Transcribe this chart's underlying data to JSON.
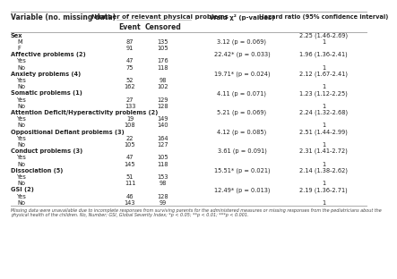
{
  "col_headers": [
    "Variable (no. missing data)",
    "Number of relevant physical problems",
    "Wald χ² (p-values)",
    "Hazard ratio (95% confidence interval)"
  ],
  "sub_headers": [
    "Event",
    "Censored"
  ],
  "rows": [
    {
      "var": "Sex",
      "event": "",
      "censored": "",
      "wald": "",
      "hr": "2.25 (1.46-2.69)",
      "bold": true
    },
    {
      "var": "M",
      "event": "87",
      "censored": "135",
      "wald": "3.12 (p = 0.069)",
      "hr": "1",
      "bold": false
    },
    {
      "var": "F",
      "event": "91",
      "censored": "105",
      "wald": "",
      "hr": "",
      "bold": false
    },
    {
      "var": "Affective problems (2)",
      "event": "",
      "censored": "",
      "wald": "22.42* (p = 0.033)",
      "hr": "1.96 (1.36-2.41)",
      "bold": true
    },
    {
      "var": "Yes",
      "event": "47",
      "censored": "176",
      "wald": "",
      "hr": "",
      "bold": false
    },
    {
      "var": "No",
      "event": "75",
      "censored": "118",
      "wald": "",
      "hr": "1",
      "bold": false
    },
    {
      "var": "Anxiety problems (4)",
      "event": "",
      "censored": "",
      "wald": "19.71* (p = 0.024)",
      "hr": "2.12 (1.67-2.41)",
      "bold": true
    },
    {
      "var": "Yes",
      "event": "52",
      "censored": "98",
      "wald": "",
      "hr": "",
      "bold": false
    },
    {
      "var": "No",
      "event": "162",
      "censored": "102",
      "wald": "",
      "hr": "1",
      "bold": false
    },
    {
      "var": "Somatic problems (1)",
      "event": "",
      "censored": "",
      "wald": "4.11 (p = 0.071)",
      "hr": "1.23 (1.12-2.25)",
      "bold": true
    },
    {
      "var": "Yes",
      "event": "27",
      "censored": "129",
      "wald": "",
      "hr": "",
      "bold": false
    },
    {
      "var": "No",
      "event": "133",
      "censored": "128",
      "wald": "",
      "hr": "1",
      "bold": false
    },
    {
      "var": "Attention Deficit/Hyperactivity problems (2)",
      "event": "",
      "censored": "",
      "wald": "5.21 (p = 0.069)",
      "hr": "2.24 (1.32-2.68)",
      "bold": true
    },
    {
      "var": "Yes",
      "event": "19",
      "censored": "149",
      "wald": "",
      "hr": "",
      "bold": false
    },
    {
      "var": "No",
      "event": "108",
      "censored": "140",
      "wald": "",
      "hr": "1",
      "bold": false
    },
    {
      "var": "Oppositional Defiant problems (3)",
      "event": "",
      "censored": "",
      "wald": "4.12 (p = 0.085)",
      "hr": "2.51 (1.44-2.99)",
      "bold": true
    },
    {
      "var": "Yes",
      "event": "22",
      "censored": "164",
      "wald": "",
      "hr": "",
      "bold": false
    },
    {
      "var": "No",
      "event": "105",
      "censored": "127",
      "wald": "",
      "hr": "1",
      "bold": false
    },
    {
      "var": "Conduct problems (3)",
      "event": "",
      "censored": "",
      "wald": "3.61 (p = 0.091)",
      "hr": "2.31 (1.41-2.72)",
      "bold": true
    },
    {
      "var": "Yes",
      "event": "47",
      "censored": "105",
      "wald": "",
      "hr": "",
      "bold": false
    },
    {
      "var": "No",
      "event": "145",
      "censored": "118",
      "wald": "",
      "hr": "1",
      "bold": false
    },
    {
      "var": "Dissociation (5)",
      "event": "",
      "censored": "",
      "wald": "15.51* (p = 0.021)",
      "hr": "2.14 (1.38-2.62)",
      "bold": true
    },
    {
      "var": "Yes",
      "event": "51",
      "censored": "153",
      "wald": "",
      "hr": "",
      "bold": false
    },
    {
      "var": "No",
      "event": "111",
      "censored": "98",
      "wald": "",
      "hr": "1",
      "bold": false
    },
    {
      "var": "GSI (2)",
      "event": "",
      "censored": "",
      "wald": "12.49* (p = 0.013)",
      "hr": "2.19 (1.36-2.71)",
      "bold": true
    },
    {
      "var": "Yes",
      "event": "46",
      "censored": "128",
      "wald": "",
      "hr": "",
      "bold": false
    },
    {
      "var": "No",
      "event": "143",
      "censored": "99",
      "wald": "",
      "hr": "1",
      "bold": false
    }
  ],
  "footnote1": "Missing data were unavailable due to incomplete responses from surviving parents for the administered measures or missing responses from the pediatricians about the",
  "footnote2": "physical health of the children. No, Number; GSI, Global Severity Index; *p < 0.05; **p < 0.01; ***p < 0.001.",
  "bg_color": "#ffffff",
  "line_color": "#aaaaaa",
  "text_color": "#222222"
}
